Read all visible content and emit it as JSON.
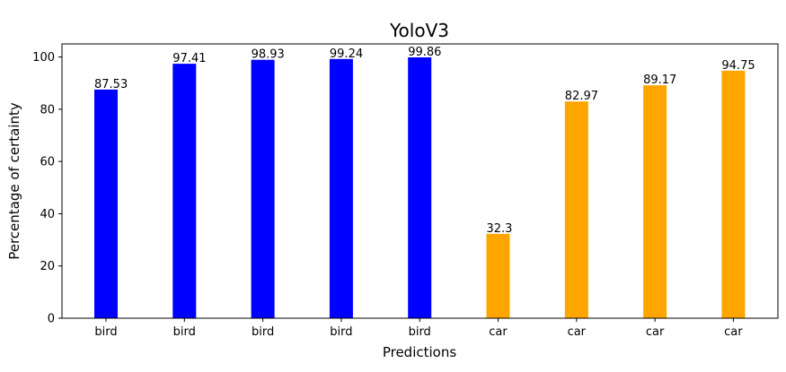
{
  "chart_data": {
    "type": "bar",
    "title": "YoloV3",
    "xlabel": "Predictions",
    "ylabel": "Percentage of certainty",
    "categories": [
      "bird",
      "bird",
      "bird",
      "bird",
      "bird",
      "car",
      "car",
      "car",
      "car"
    ],
    "values": [
      87.53,
      97.41,
      98.93,
      99.24,
      99.86,
      32.3,
      82.97,
      89.17,
      94.75
    ],
    "value_labels": [
      "87.53",
      "97.41",
      "98.93",
      "99.24",
      "99.86",
      "32.3",
      "82.97",
      "89.17",
      "94.75"
    ],
    "colors": [
      "#0000ff",
      "#0000ff",
      "#0000ff",
      "#0000ff",
      "#0000ff",
      "#ffa500",
      "#ffa500",
      "#ffa500",
      "#ffa500"
    ],
    "ylim": [
      0,
      105
    ],
    "yticks": [
      0,
      20,
      40,
      60,
      80,
      100
    ],
    "grid": false,
    "legend": "none"
  }
}
